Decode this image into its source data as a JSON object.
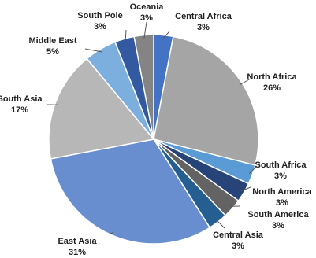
{
  "chart_data": {
    "type": "pie",
    "categories": [
      "Central Africa",
      "North Africa",
      "South Africa",
      "North America",
      "South America",
      "Central Asia",
      "East Asia",
      "South Asia",
      "Middle East",
      "South Pole",
      "Oceania"
    ],
    "values": [
      3,
      26,
      3,
      3,
      3,
      3,
      31,
      17,
      5,
      3,
      3
    ],
    "value_labels": [
      "3%",
      "26%",
      "3%",
      "3%",
      "3%",
      "3%",
      "31%",
      "17%",
      "5%",
      "3%",
      "3%"
    ],
    "colors": [
      "#4472c4",
      "#a5a5a5",
      "#5b9bd5",
      "#264478",
      "#636363",
      "#255e91",
      "#698ed0",
      "#b7b7b7",
      "#7cafdd",
      "#335aa1",
      "#848484"
    ]
  }
}
